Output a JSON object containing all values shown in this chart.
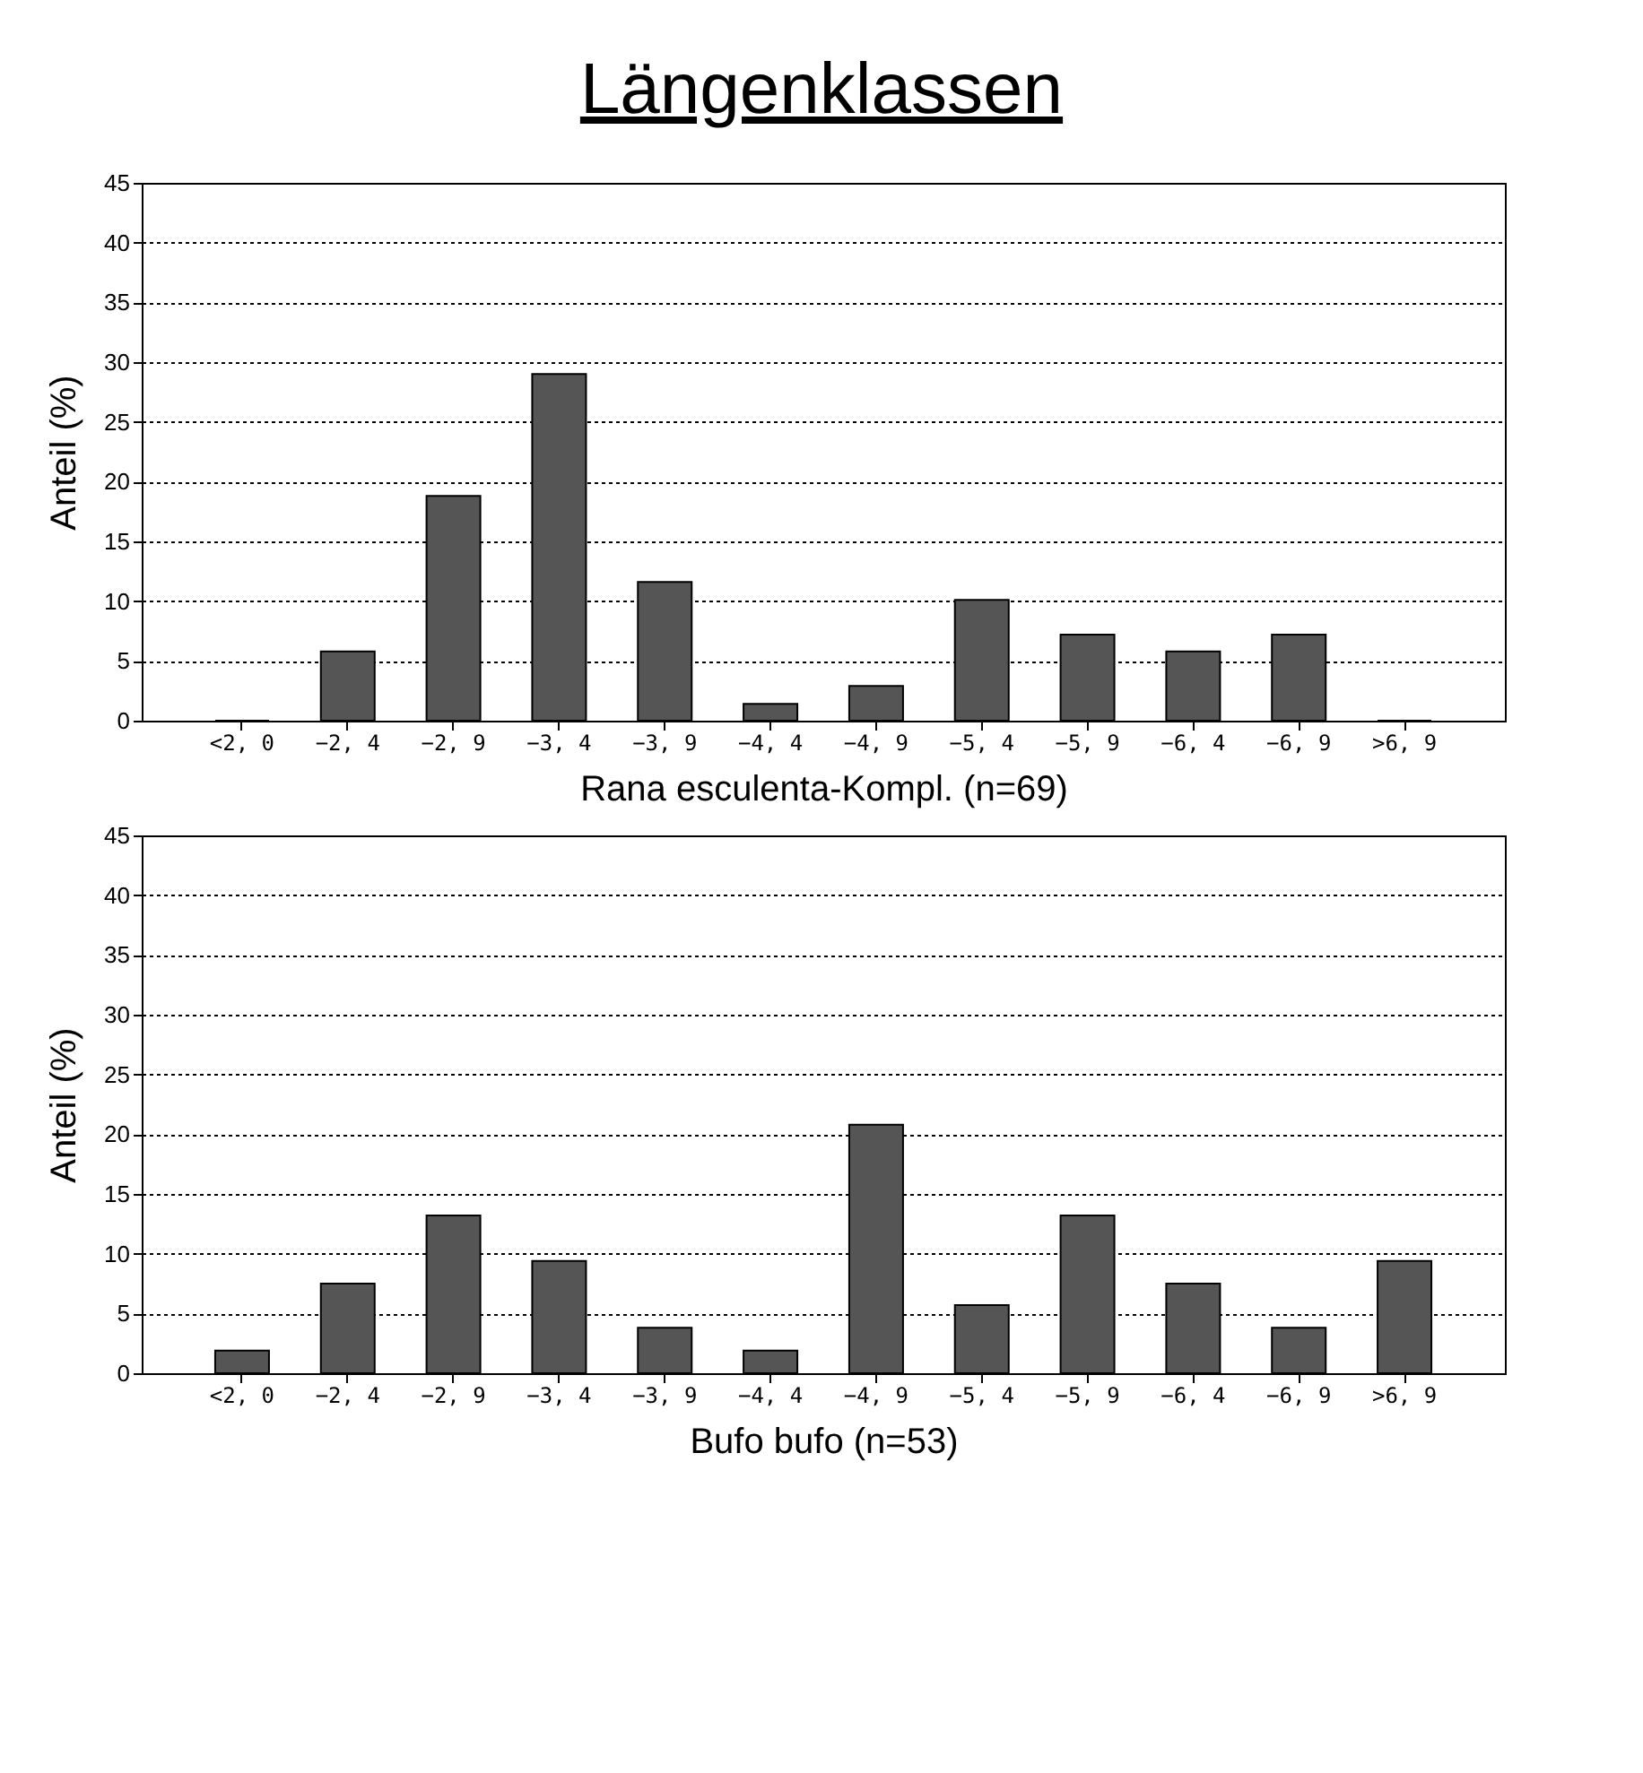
{
  "chart_data": [
    {
      "type": "bar",
      "title": "Längenklassen",
      "xlabel": "Rana esculenta-Kompl. (n=69)",
      "ylabel": "Anteil (%)",
      "categories": [
        "<2, 0",
        "−2, 4",
        "−2, 9",
        "−3, 4",
        "−3, 9",
        "−4, 4",
        "−4, 9",
        "−5, 4",
        "−5, 9",
        "−6, 4",
        "−6, 9",
        ">6, 9"
      ],
      "values": [
        0,
        5.8,
        18.8,
        29.0,
        11.6,
        1.4,
        2.9,
        10.1,
        7.2,
        5.8,
        7.2,
        0
      ],
      "color": "#555555",
      "ylim": [
        0,
        45
      ],
      "yticks": [
        0,
        5,
        10,
        15,
        20,
        25,
        30,
        35,
        40,
        45
      ],
      "grid": "y"
    },
    {
      "type": "bar",
      "xlabel": "Bufo bufo (n=53)",
      "ylabel": "Anteil (%)",
      "categories": [
        "<2, 0",
        "−2, 4",
        "−2, 9",
        "−3, 4",
        "−3, 9",
        "−4, 4",
        "−4, 9",
        "−5, 4",
        "−5, 9",
        "−6, 4",
        "−6, 9",
        ">6, 9"
      ],
      "values": [
        1.9,
        7.5,
        13.2,
        9.4,
        3.8,
        1.9,
        20.8,
        5.7,
        13.2,
        7.5,
        3.8,
        9.4
      ],
      "color": "#555555",
      "ylim": [
        0,
        45
      ],
      "yticks": [
        0,
        5,
        10,
        15,
        20,
        25,
        30,
        35,
        40,
        45
      ],
      "grid": "y"
    }
  ]
}
